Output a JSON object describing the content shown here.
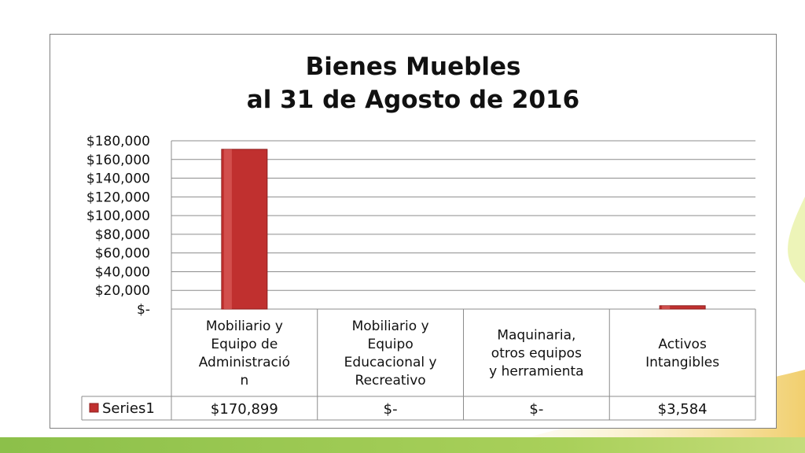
{
  "chart_data": {
    "type": "bar",
    "title": "Bienes Muebles",
    "subtitle": "al 31 de Agosto de 2016",
    "categories": [
      [
        "Mobiliario y",
        "Equipo de",
        "Administració",
        "n"
      ],
      [
        "Mobiliario y",
        "Equipo",
        "Educacional y",
        "Recreativo"
      ],
      [
        "Maquinaria,",
        "otros equipos",
        "y herramienta"
      ],
      [
        "Activos",
        "Intangibles"
      ]
    ],
    "series": [
      {
        "name": "Series1",
        "values": [
          170899,
          0,
          0,
          3584
        ],
        "table_values": [
          "$170,899",
          "$-",
          "$-",
          "$3,584"
        ],
        "color": "#c0302f"
      }
    ],
    "ylim": [
      0,
      180000
    ],
    "yticks": [
      "$-",
      "$20,000",
      "$40,000",
      "$60,000",
      "$80,000",
      "$100,000",
      "$120,000",
      "$140,000",
      "$160,000",
      "$180,000"
    ],
    "grid": true,
    "legend_placement": "data-table"
  },
  "background": {
    "accent_green": "#9ccb4a",
    "accent_yellow": "#f3d57a"
  }
}
